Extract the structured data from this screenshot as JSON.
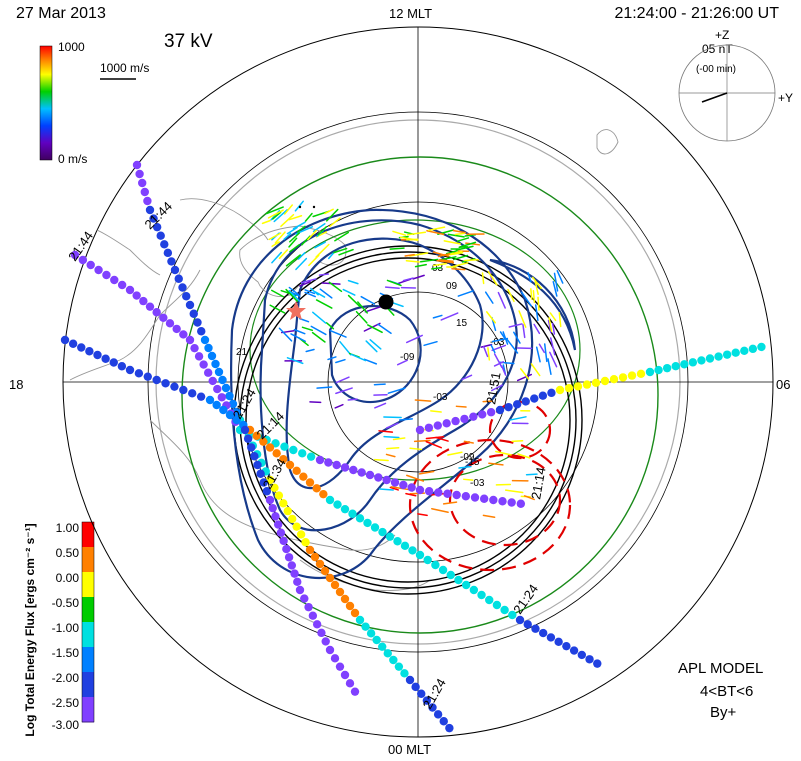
{
  "header": {
    "date": "27  Mar  2013",
    "time_range": "21:24:00  -  21:26:00  UT",
    "voltage": "37 kV"
  },
  "mlt_labels": {
    "top": "12 MLT",
    "bottom": "00 MLT",
    "left": "18",
    "right": "06"
  },
  "imf_clock": {
    "magnitude": "05 nT",
    "offset": "(-00 min)",
    "z_label": "+Z",
    "y_label": "+Y",
    "angle_deg_from_plus_y": 200
  },
  "velocity_legend": {
    "max_label": "1000",
    "min_label": "0 m/s",
    "scale_label": "1000 m/s"
  },
  "flux_legend": {
    "title": "Log Total Energy Flux  [ergs cm⁻² s⁻¹]",
    "ticks": [
      "1.00",
      "0.50",
      "0.00",
      "-0.50",
      "-1.00",
      "-1.50",
      "-2.00",
      "-2.50",
      "-3.00"
    ],
    "colors": [
      "#ff0000",
      "#ff8000",
      "#ffff00",
      "#00cc00",
      "#00e0e0",
      "#0080ff",
      "#2040e0",
      "#8040ff"
    ]
  },
  "model": {
    "line1": "APL MODEL",
    "line2": "4<BT<6",
    "line3": "By+"
  },
  "contour_labels": [
    "03",
    "09",
    "15",
    "-09",
    "21",
    "-03",
    "-03",
    "-15",
    "-03",
    "-09"
  ],
  "pass_labels": [
    "21:44",
    "21:44",
    "21:24",
    "21:14",
    "21:34",
    "21:51",
    "21:14",
    "21:24",
    "21:24"
  ]
}
